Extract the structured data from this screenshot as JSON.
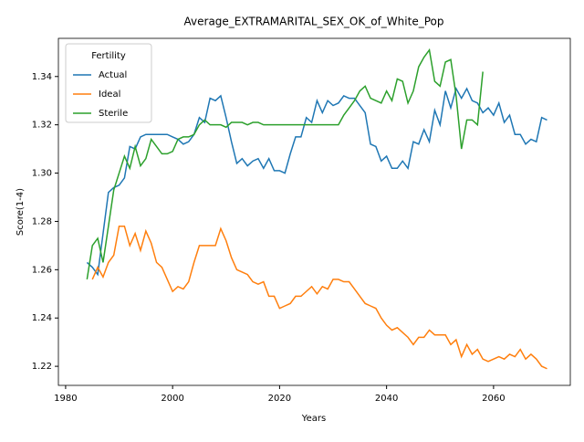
{
  "chart_data": {
    "type": "line",
    "title": "Average_EXTRAMARITAL_SEX_OK_of_White_Pop",
    "xlabel": "Years",
    "ylabel": "Score(1-4)",
    "legend_title": "Fertility",
    "legend": "upper left",
    "x": [
      1984,
      1985,
      1986,
      1987,
      1988,
      1989,
      1990,
      1991,
      1992,
      1993,
      1994,
      1995,
      1996,
      1997,
      1998,
      1999,
      2000,
      2001,
      2002,
      2003,
      2004,
      2005,
      2006,
      2007,
      2008,
      2009,
      2010,
      2011,
      2012,
      2013,
      2014,
      2015,
      2016,
      2017,
      2018,
      2019,
      2020,
      2021,
      2022,
      2023,
      2024,
      2025,
      2026,
      2027,
      2028,
      2029,
      2030,
      2031,
      2032,
      2033,
      2034,
      2035,
      2036,
      2037,
      2038,
      2039,
      2040,
      2041,
      2042,
      2043,
      2044,
      2045,
      2046,
      2047,
      2048,
      2049,
      2050,
      2051,
      2052,
      2053,
      2054,
      2055,
      2056,
      2057,
      2058,
      2059,
      2060,
      2061,
      2062,
      2063,
      2064,
      2065,
      2066,
      2067,
      2068,
      2069,
      2070
    ],
    "series": [
      {
        "name": "Actual",
        "color": "#1f77b4",
        "values": [
          1.263,
          1.261,
          1.258,
          1.275,
          1.292,
          1.294,
          1.295,
          1.298,
          1.311,
          1.31,
          1.315,
          1.316,
          1.316,
          1.316,
          1.316,
          1.316,
          1.315,
          1.314,
          1.312,
          1.313,
          1.316,
          1.323,
          1.321,
          1.331,
          1.33,
          1.332,
          1.323,
          1.313,
          1.304,
          1.306,
          1.303,
          1.305,
          1.306,
          1.302,
          1.306,
          1.301,
          1.301,
          1.3,
          1.308,
          1.315,
          1.315,
          1.323,
          1.321,
          1.33,
          1.325,
          1.33,
          1.328,
          1.329,
          1.332,
          1.331,
          1.331,
          1.328,
          1.325,
          1.312,
          1.311,
          1.305,
          1.307,
          1.302,
          1.302,
          1.305,
          1.302,
          1.313,
          1.312,
          1.318,
          1.313,
          1.326,
          1.32,
          1.334,
          1.327,
          1.335,
          1.331,
          1.335,
          1.33,
          1.329,
          1.325,
          1.327,
          1.324,
          1.329,
          1.321,
          1.324,
          1.316,
          1.316,
          1.312,
          1.314,
          1.313,
          1.323,
          1.322
        ]
      },
      {
        "name": "Ideal",
        "color": "#ff7f0e",
        "values": [
          null,
          1.256,
          1.261,
          1.257,
          1.263,
          1.266,
          1.278,
          1.278,
          1.27,
          1.275,
          1.268,
          1.276,
          1.271,
          1.263,
          1.261,
          1.256,
          1.251,
          1.253,
          1.252,
          1.255,
          1.263,
          1.27,
          1.27,
          1.27,
          1.27,
          1.277,
          1.272,
          1.265,
          1.26,
          1.259,
          1.258,
          1.255,
          1.254,
          1.255,
          1.249,
          1.249,
          1.244,
          1.245,
          1.246,
          1.249,
          1.249,
          1.251,
          1.253,
          1.25,
          1.253,
          1.252,
          1.256,
          1.256,
          1.255,
          1.255,
          1.252,
          1.249,
          1.246,
          1.245,
          1.244,
          1.24,
          1.237,
          1.235,
          1.236,
          1.234,
          1.232,
          1.229,
          1.232,
          1.232,
          1.235,
          1.233,
          1.233,
          1.233,
          1.229,
          1.231,
          1.224,
          1.229,
          1.225,
          1.227,
          1.223,
          1.222,
          1.223,
          1.224,
          1.223,
          1.225,
          1.224,
          1.227,
          1.223,
          1.225,
          1.223,
          1.22,
          1.219
        ]
      },
      {
        "name": "Sterile",
        "color": "#2ca02c",
        "values": [
          1.256,
          1.27,
          1.273,
          1.263,
          1.278,
          1.293,
          1.3,
          1.307,
          1.302,
          1.311,
          1.303,
          1.306,
          1.314,
          1.311,
          1.308,
          1.308,
          1.309,
          1.314,
          1.315,
          1.315,
          1.316,
          1.32,
          1.322,
          1.32,
          1.32,
          1.32,
          1.319,
          1.321,
          1.321,
          1.321,
          1.32,
          1.321,
          1.321,
          1.32,
          1.32,
          1.32,
          1.32,
          1.32,
          1.32,
          1.32,
          1.32,
          1.32,
          1.32,
          1.32,
          1.32,
          1.32,
          1.32,
          1.32,
          1.324,
          1.327,
          1.33,
          1.334,
          1.336,
          1.331,
          1.33,
          1.329,
          1.334,
          1.33,
          1.339,
          1.338,
          1.329,
          1.334,
          1.344,
          1.348,
          1.351,
          1.338,
          1.336,
          1.346,
          1.347,
          1.332,
          1.31,
          1.322,
          1.322,
          1.32,
          1.342,
          null,
          null,
          null,
          null,
          null,
          null,
          null,
          null,
          null,
          null,
          null,
          null
        ]
      }
    ],
    "xlim": [
      1978.65,
      2074.35
    ],
    "xticks": [
      1980,
      2000,
      2020,
      2040,
      2060
    ],
    "ylim": [
      1.2121,
      1.3558
    ],
    "yticks": [
      1.22,
      1.24,
      1.26,
      1.28,
      {
        "value": 1.3,
        "label": "1.30"
      },
      1.32,
      1.34
    ]
  }
}
